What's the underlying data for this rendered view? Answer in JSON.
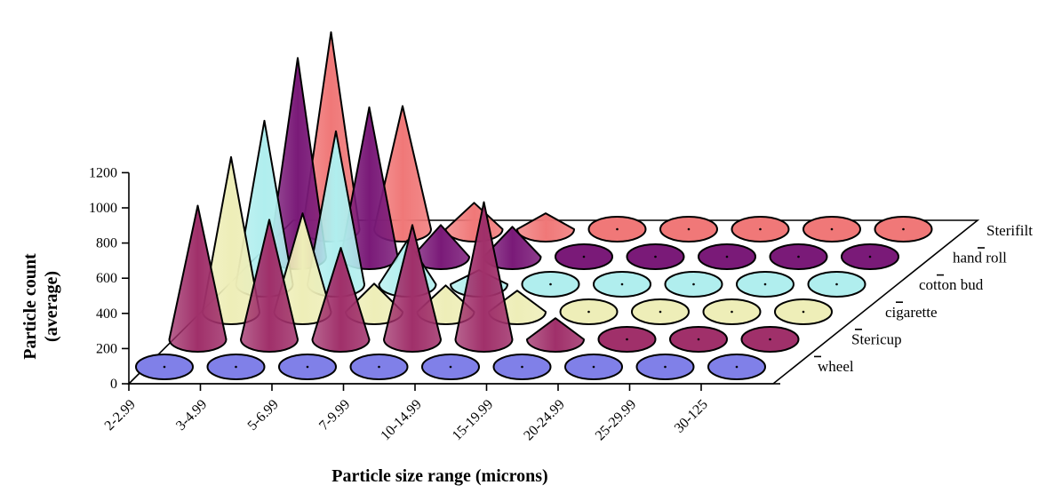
{
  "chart_data": {
    "type": "3d-cone",
    "xlabel": "Particle size range (microns)",
    "ylabel_lines": [
      "Particle count",
      "(average)"
    ],
    "categories": [
      "2-2.99",
      "3-4.99",
      "5-6.99",
      "7-9.99",
      "10-14.99",
      "15-19.99",
      "20-24.99",
      "25-29.99",
      "30-125"
    ],
    "yticks": [
      0,
      200,
      400,
      600,
      800,
      1000,
      1200
    ],
    "ylim": [
      0,
      1200
    ],
    "series": [
      {
        "name": "wheel",
        "color": "#8080e8",
        "values": [
          0,
          0,
          0,
          0,
          0,
          0,
          0,
          0,
          0
        ]
      },
      {
        "name": "Stericup",
        "color": "#a0306a",
        "values": [
          760,
          680,
          520,
          650,
          780,
          120,
          0,
          0,
          0
        ]
      },
      {
        "name": "cigarette",
        "color": "#eeeeb8",
        "values": [
          880,
          560,
          160,
          150,
          120,
          0,
          0,
          0,
          0
        ]
      },
      {
        "name": "cotton bud",
        "color": "#b0eeee",
        "values": [
          930,
          870,
          250,
          80,
          0,
          0,
          0,
          0,
          0
        ]
      },
      {
        "name": "hand roll",
        "color": "#7a1a78",
        "values": [
          1130,
          850,
          180,
          170,
          0,
          0,
          0,
          0,
          0
        ]
      },
      {
        "name": "Sterifilt",
        "color": "#f07878",
        "values": [
          1120,
          700,
          150,
          90,
          0,
          0,
          0,
          0,
          0
        ]
      }
    ]
  }
}
